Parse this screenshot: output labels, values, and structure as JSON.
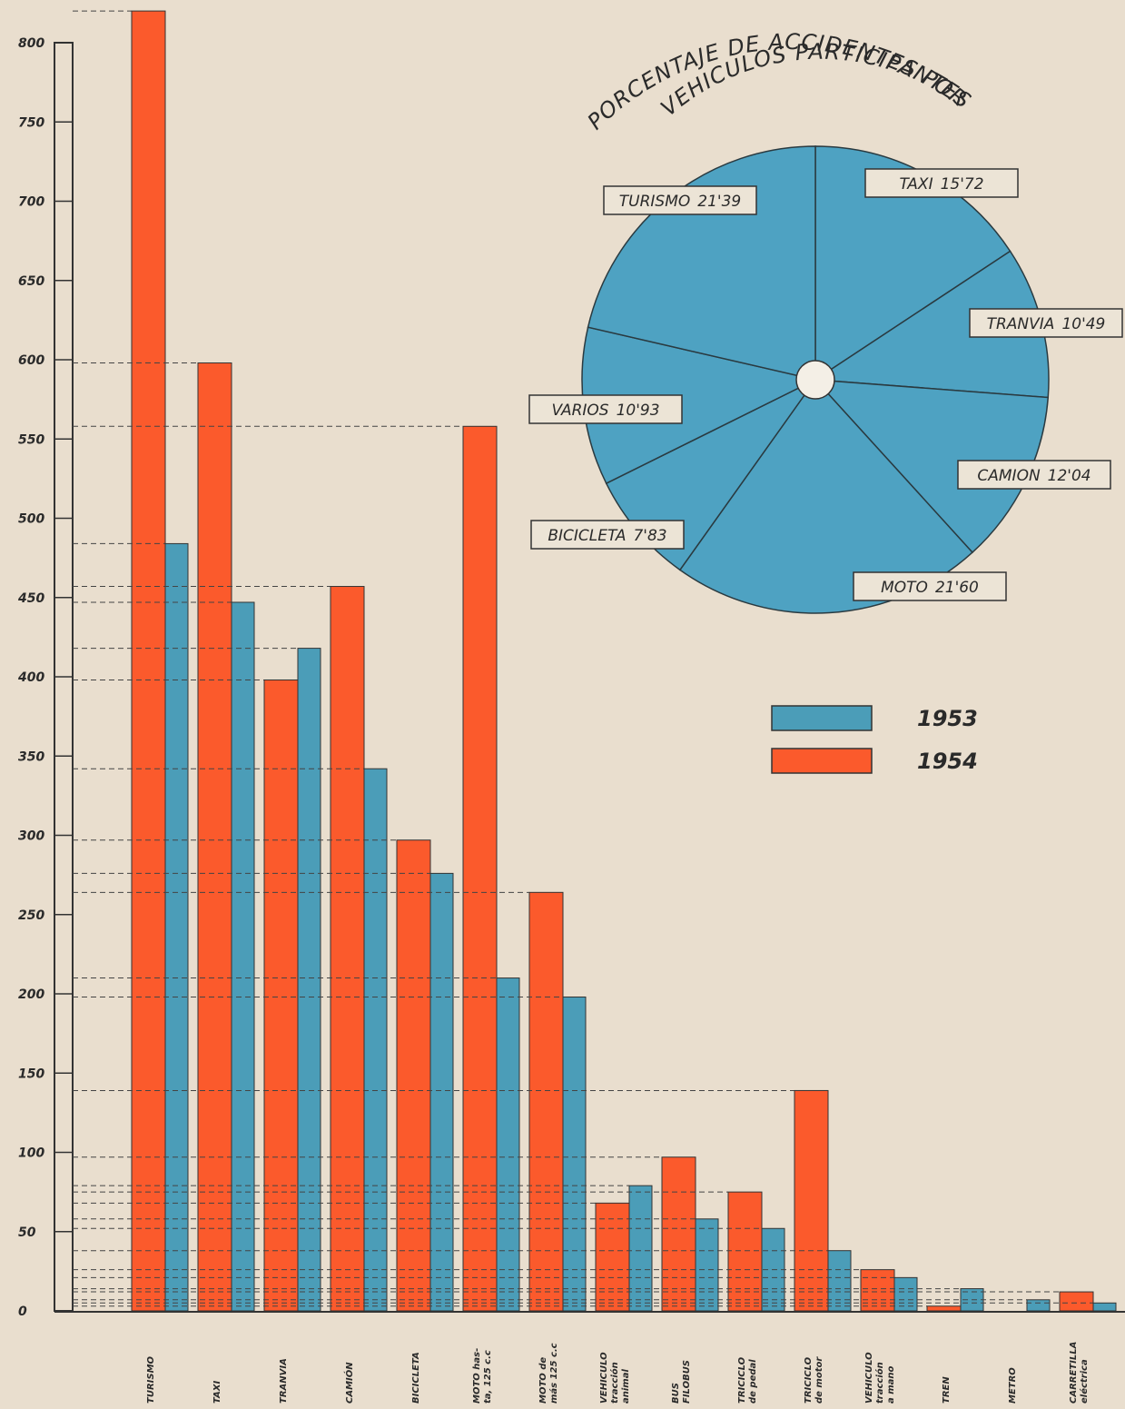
{
  "chart_data": [
    {
      "type": "bar",
      "categories": [
        [
          "TURISMO"
        ],
        [
          "TAXI"
        ],
        [
          "TRANVIA"
        ],
        [
          "CAMIÓN"
        ],
        [
          "BICICLETA"
        ],
        [
          "MOTO has-",
          "ta, 125 c.c"
        ],
        [
          "MOTO de",
          "más 125 c.c"
        ],
        [
          "VEHICULO",
          "tracción",
          "animal"
        ],
        [
          "BUS",
          "FILOBUS"
        ],
        [
          "TRICICLO",
          "de pedal"
        ],
        [
          "TRICICLO",
          "de motor"
        ],
        [
          "VEHICULO",
          "tracción",
          "a mano"
        ],
        [
          "TREN"
        ],
        [
          "METRO"
        ],
        [
          "CARRETILLA",
          "eléctrica"
        ]
      ],
      "series": [
        {
          "name": "1954",
          "color": "#fb5a2c",
          "values": [
            820,
            598,
            398,
            457,
            297,
            558,
            264,
            68,
            97,
            75,
            139,
            26,
            3,
            null,
            12
          ]
        },
        {
          "name": "1953",
          "color": "#4b9db8",
          "values": [
            484,
            447,
            418,
            342,
            276,
            210,
            198,
            79,
            58,
            52,
            38,
            21,
            14,
            7,
            5
          ]
        }
      ],
      "ylim": [
        0,
        800
      ],
      "yticks": [
        0,
        50,
        100,
        150,
        200,
        250,
        300,
        350,
        400,
        450,
        500,
        550,
        600,
        650,
        700,
        750,
        800
      ],
      "reference_lines": true
    },
    {
      "type": "pie",
      "title": [
        "PORCENTAJE DE ACCIDENTES POR",
        "VEHICULOS PARTICIPANTES"
      ],
      "color": "#4ea2c2",
      "categories": [
        "TAXI",
        "TRANVIA",
        "CAMION",
        "MOTO",
        "BICICLETA",
        "VARIOS",
        "TURISMO"
      ],
      "values": [
        15.72,
        10.49,
        12.04,
        21.6,
        7.83,
        10.93,
        21.39
      ],
      "value_labels": [
        "15'72",
        "10'49",
        "12'04",
        "21'60",
        "7'83",
        "10'93",
        "21'39"
      ]
    }
  ]
}
